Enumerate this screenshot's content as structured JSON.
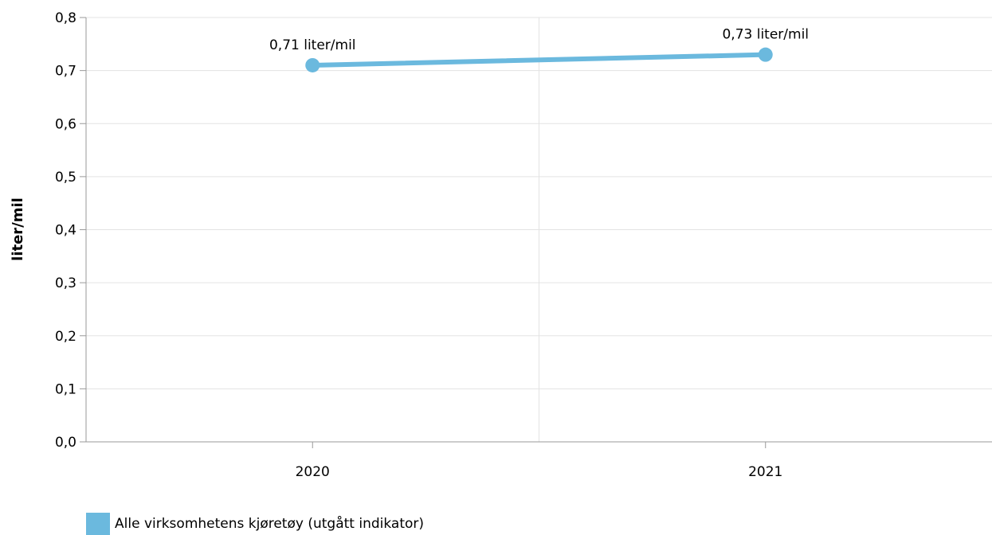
{
  "chart_data": {
    "type": "line",
    "categories": [
      "2020",
      "2021"
    ],
    "series": [
      {
        "name": "Alle virksomhetens kjøretøy (utgått indikator)",
        "values": [
          0.71,
          0.73
        ],
        "data_labels": [
          "0,71 liter/mil",
          "0,73 liter/mil"
        ],
        "color": "#6BB9DE"
      }
    ],
    "ylabel": "liter/mil",
    "xlabel": "",
    "ylim": [
      0,
      0.8
    ],
    "yticks": [
      0.0,
      0.1,
      0.2,
      0.3,
      0.4,
      0.5,
      0.6,
      0.7,
      0.8
    ],
    "ytick_labels": [
      "0,0",
      "0,1",
      "0,2",
      "0,3",
      "0,4",
      "0,5",
      "0,6",
      "0,7",
      "0,8"
    ],
    "grid": true,
    "legend_position": "bottom-left"
  },
  "legend": {
    "label": "Alle virksomhetens kjøretøy (utgått indikator)",
    "color": "#6BB9DE"
  }
}
